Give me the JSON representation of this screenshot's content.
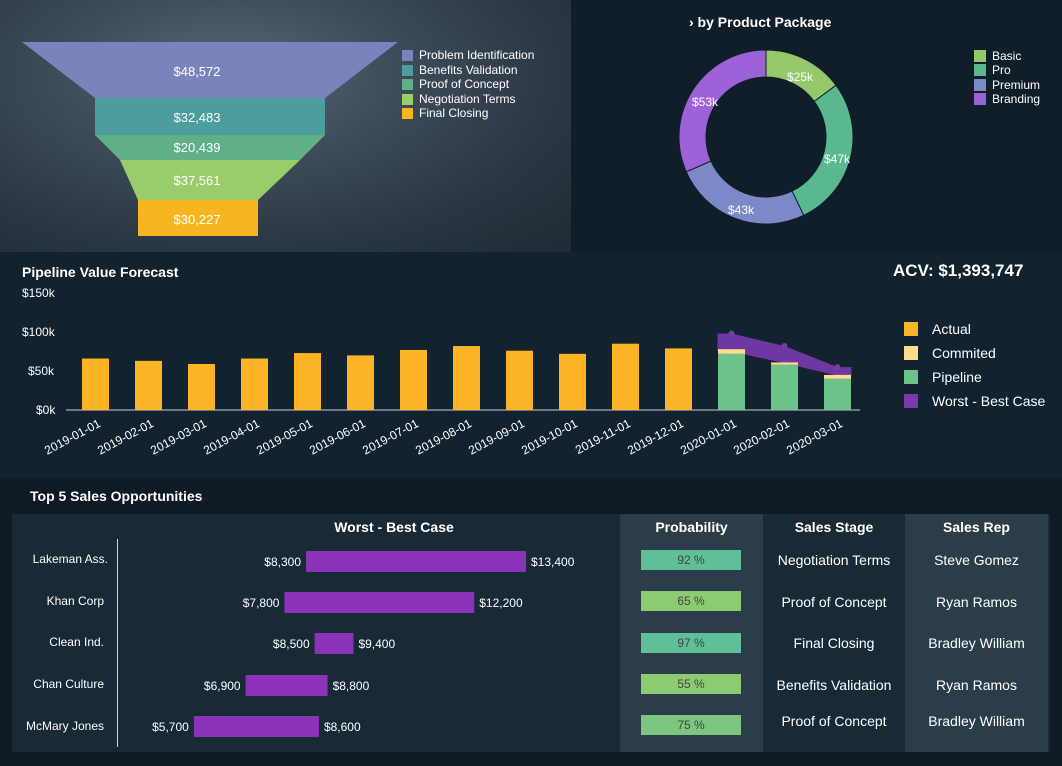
{
  "funnel": {
    "legend": [
      "Problem Identification",
      "Benefits Validation",
      "Proof of Concept",
      "Negotiation Terms",
      "Final Closing"
    ],
    "values": [
      "$48,572",
      "$32,483",
      "$20,439",
      "$37,561",
      "$30,227"
    ],
    "colors": [
      "#7b83bd",
      "#4b9d9e",
      "#5faf87",
      "#9acd6a",
      "#f7b620"
    ]
  },
  "donut": {
    "title": "› by Product Package",
    "legend": [
      "Basic",
      "Pro",
      "Premium",
      "Branding"
    ],
    "labels": [
      "$25k",
      "$47k",
      "$43k",
      "$53k"
    ],
    "colors": [
      "#93c96a",
      "#5ab88e",
      "#7b8ac6",
      "#9e62d8"
    ]
  },
  "pipeline": {
    "title": "Pipeline Value Forecast",
    "acv": "ACV: $1,393,747",
    "y_ticks": [
      "$150k",
      "$100k",
      "$50k",
      "$0k"
    ],
    "legend": [
      "Actual",
      "Commited",
      "Pipeline",
      "Worst - Best Case"
    ],
    "colors": {
      "actual": "#fbb425",
      "commited": "#fddc8a",
      "pipeline": "#6cc38a",
      "range": "#7a3aae"
    }
  },
  "chart_data": {
    "type": "bar",
    "title": "Pipeline Value Forecast",
    "categories": [
      "2019-01-01",
      "2019-02-01",
      "2019-03-01",
      "2019-04-01",
      "2019-05-01",
      "2019-06-01",
      "2019-07-01",
      "2019-08-01",
      "2019-09-01",
      "2019-10-01",
      "2019-11-01",
      "2019-12-01",
      "2020-01-01",
      "2020-02-01",
      "2020-03-01"
    ],
    "series": [
      {
        "name": "Actual",
        "values": [
          66,
          63,
          59,
          66,
          73,
          70,
          77,
          82,
          76,
          72,
          85,
          79,
          0,
          0,
          0
        ]
      },
      {
        "name": "Commited",
        "values": [
          0,
          0,
          0,
          0,
          0,
          0,
          0,
          0,
          0,
          0,
          0,
          0,
          6,
          3,
          5
        ]
      },
      {
        "name": "Pipeline",
        "values": [
          0,
          0,
          0,
          0,
          0,
          0,
          0,
          0,
          0,
          0,
          0,
          0,
          72,
          58,
          40
        ]
      },
      {
        "name": "Worst - Best Case",
        "low": [
          null,
          null,
          null,
          null,
          null,
          null,
          null,
          null,
          null,
          null,
          null,
          null,
          75,
          60,
          44
        ],
        "high": [
          null,
          null,
          null,
          null,
          null,
          null,
          null,
          null,
          null,
          null,
          null,
          null,
          98,
          82,
          55
        ]
      }
    ],
    "ylim": [
      0,
      150
    ],
    "ylabel": "",
    "xlabel": ""
  },
  "opportunities": {
    "title": "Top 5 Sales Opportunities",
    "headers": {
      "range": "Worst - Best Case",
      "probability": "Probability",
      "stage": "Sales Stage",
      "rep": "Sales Rep"
    },
    "rows": [
      {
        "name": "Lakeman Ass.",
        "worst": 8300,
        "best": 13400,
        "worst_label": "$8,300",
        "best_label": "$13,400",
        "probability": "92 %",
        "stage": "Negotiation Terms",
        "rep": "Steve Gomez"
      },
      {
        "name": "Khan Corp",
        "worst": 7800,
        "best": 12200,
        "worst_label": "$7,800",
        "best_label": "$12,200",
        "probability": "65 %",
        "stage": "Proof of Concept",
        "rep": "Ryan Ramos"
      },
      {
        "name": "Clean Ind.",
        "worst": 8500,
        "best": 9400,
        "worst_label": "$8,500",
        "best_label": "$9,400",
        "probability": "97 %",
        "stage": "Final Closing",
        "rep": "Bradley William"
      },
      {
        "name": "Chan Culture",
        "worst": 6900,
        "best": 8800,
        "worst_label": "$6,900",
        "best_label": "$8,800",
        "probability": "55 %",
        "stage": "Benefits Validation",
        "rep": "Ryan Ramos"
      },
      {
        "name": "McMary Jones",
        "worst": 5700,
        "best": 8600,
        "worst_label": "$5,700",
        "best_label": "$8,600",
        "probability": "75 %",
        "stage": "Proof of Concept",
        "rep": "Bradley William"
      }
    ],
    "prob_colors": [
      "#5fbf96",
      "#8ccb72",
      "#5fbf96",
      "#8ccb72",
      "#7cc67f"
    ],
    "bar_color": "#8a33b8"
  }
}
